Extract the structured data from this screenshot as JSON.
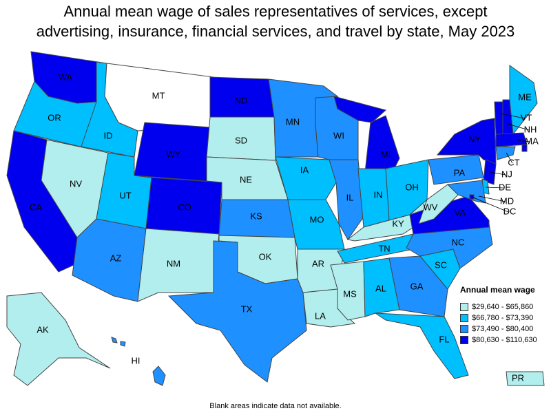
{
  "title_line1": "Annual mean wage of sales representatives of services, except",
  "title_line2": "advertising, insurance, financial services, and travel by state, May 2023",
  "legend": {
    "title": "Annual mean wage",
    "items": [
      {
        "label": "$29,640 - $65,860",
        "color": "#b2eeee"
      },
      {
        "label": "$66,780 - $73,390",
        "color": "#00bfff"
      },
      {
        "label": "$73,490 - $80,400",
        "color": "#1e90ff"
      },
      {
        "label": "$80,630 - $110,630",
        "color": "#0000ee"
      }
    ]
  },
  "footnote": "Blank areas indicate data not available.",
  "states": [
    {
      "abbr": "WA",
      "bin": 3
    },
    {
      "abbr": "OR",
      "bin": 1
    },
    {
      "abbr": "CA",
      "bin": 3
    },
    {
      "abbr": "ID",
      "bin": 1
    },
    {
      "abbr": "NV",
      "bin": 0
    },
    {
      "abbr": "MT",
      "bin": -1
    },
    {
      "abbr": "WY",
      "bin": 3
    },
    {
      "abbr": "UT",
      "bin": 1
    },
    {
      "abbr": "AZ",
      "bin": 2
    },
    {
      "abbr": "CO",
      "bin": 3
    },
    {
      "abbr": "NM",
      "bin": 0
    },
    {
      "abbr": "ND",
      "bin": 3
    },
    {
      "abbr": "SD",
      "bin": 0
    },
    {
      "abbr": "NE",
      "bin": 0
    },
    {
      "abbr": "KS",
      "bin": 2
    },
    {
      "abbr": "OK",
      "bin": 0
    },
    {
      "abbr": "TX",
      "bin": 2
    },
    {
      "abbr": "MN",
      "bin": 2
    },
    {
      "abbr": "IA",
      "bin": 1
    },
    {
      "abbr": "MO",
      "bin": 1
    },
    {
      "abbr": "AR",
      "bin": 0
    },
    {
      "abbr": "LA",
      "bin": 0
    },
    {
      "abbr": "WI",
      "bin": 2
    },
    {
      "abbr": "IL",
      "bin": 2
    },
    {
      "abbr": "MI",
      "bin": 3
    },
    {
      "abbr": "IN",
      "bin": 1
    },
    {
      "abbr": "OH",
      "bin": 1
    },
    {
      "abbr": "KY",
      "bin": 0
    },
    {
      "abbr": "TN",
      "bin": 1
    },
    {
      "abbr": "MS",
      "bin": 0
    },
    {
      "abbr": "AL",
      "bin": 1
    },
    {
      "abbr": "GA",
      "bin": 2
    },
    {
      "abbr": "FL",
      "bin": 1
    },
    {
      "abbr": "SC",
      "bin": 1
    },
    {
      "abbr": "NC",
      "bin": 2
    },
    {
      "abbr": "VA",
      "bin": 3
    },
    {
      "abbr": "WV",
      "bin": 0
    },
    {
      "abbr": "PA",
      "bin": 2
    },
    {
      "abbr": "NY",
      "bin": 3
    },
    {
      "abbr": "VT",
      "bin": 3
    },
    {
      "abbr": "NH",
      "bin": 3
    },
    {
      "abbr": "ME",
      "bin": 1
    },
    {
      "abbr": "MA",
      "bin": 3
    },
    {
      "abbr": "RI",
      "bin": 3
    },
    {
      "abbr": "CT",
      "bin": 2
    },
    {
      "abbr": "NJ",
      "bin": 3
    },
    {
      "abbr": "DE",
      "bin": 1
    },
    {
      "abbr": "MD",
      "bin": 2
    },
    {
      "abbr": "DC",
      "bin": 3
    },
    {
      "abbr": "AK",
      "bin": 0
    },
    {
      "abbr": "HI",
      "bin": 2
    },
    {
      "abbr": "PR",
      "bin": 0
    }
  ]
}
